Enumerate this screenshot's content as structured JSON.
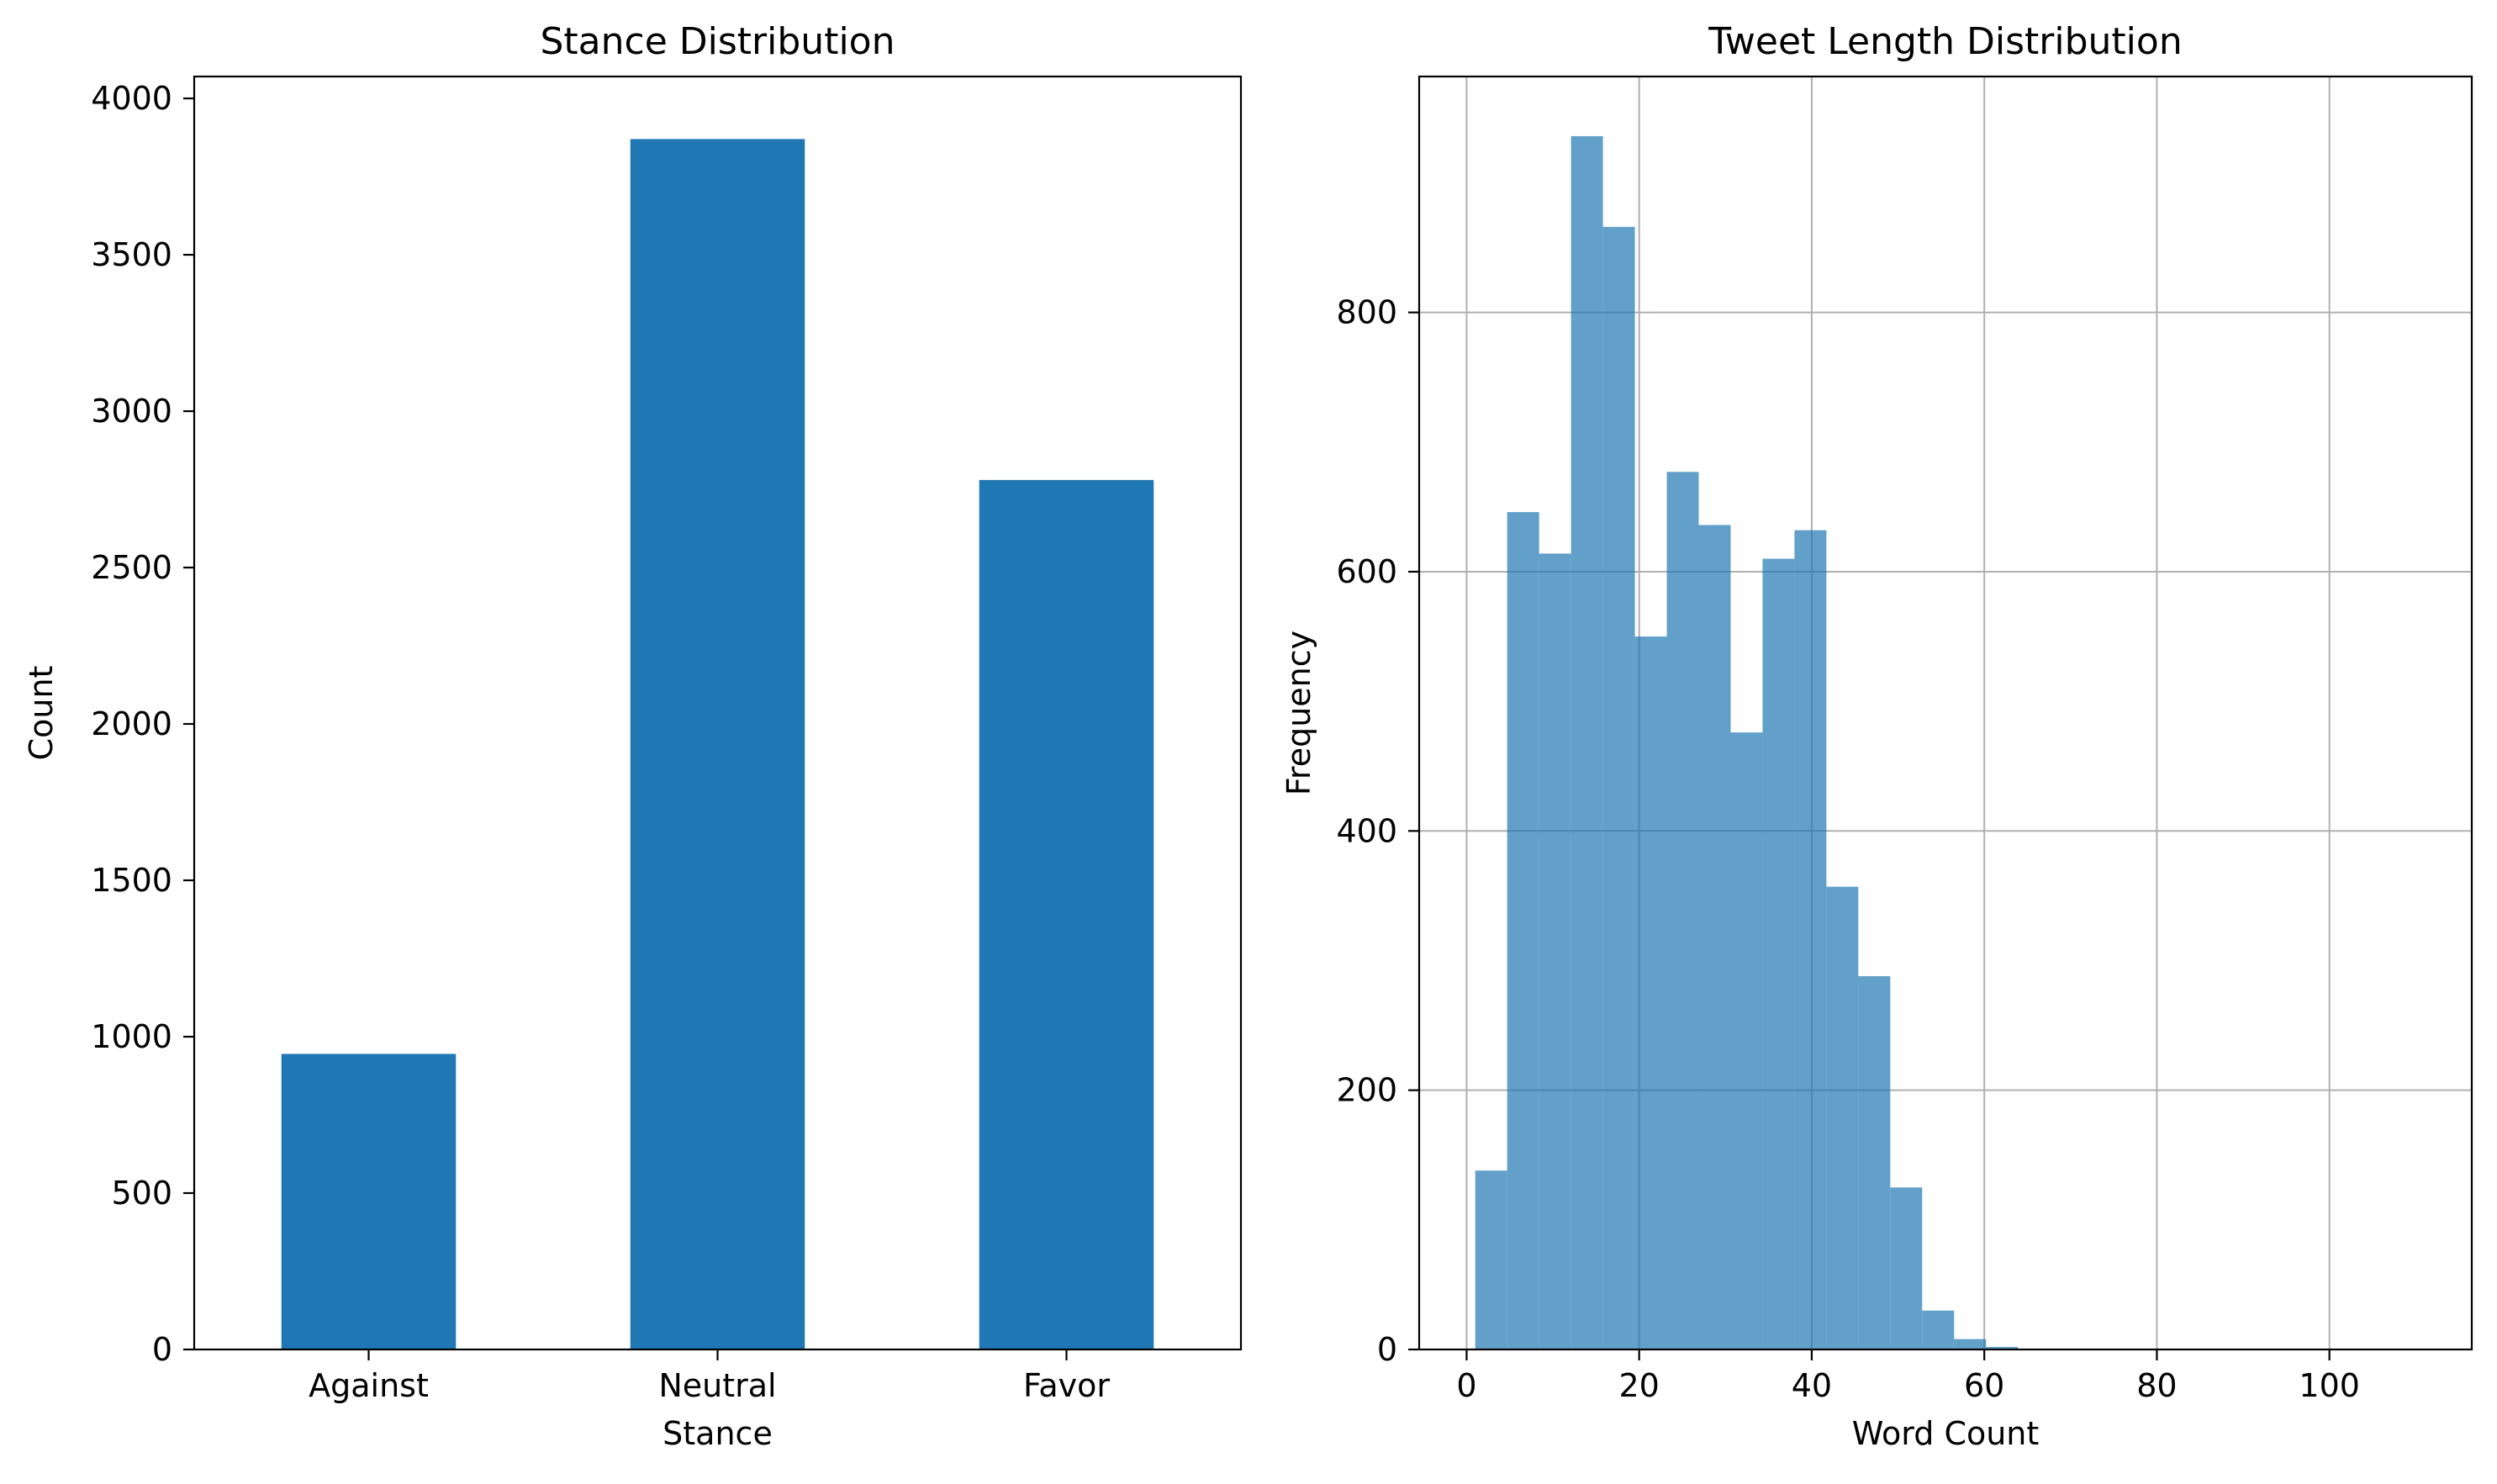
{
  "chart_data": [
    {
      "type": "bar",
      "title": "Stance Distribution",
      "xlabel": "Stance",
      "ylabel": "Count",
      "categories": [
        "Against",
        "Neutral",
        "Favor"
      ],
      "values": [
        945,
        3870,
        2780
      ],
      "ylim": [
        0,
        4070
      ],
      "yticks": [
        0,
        500,
        1000,
        1500,
        2000,
        2500,
        3000,
        3500,
        4000
      ],
      "grid": false,
      "color": "#1f77b4"
    },
    {
      "type": "bar",
      "title": "Tweet Length Distribution",
      "xlabel": "Word Count",
      "ylabel": "Frequency",
      "bin_edges": [
        1,
        4.7,
        8.4,
        12.1,
        15.8,
        19.5,
        23.2,
        26.9,
        30.6,
        34.3,
        38.0,
        41.7,
        45.4,
        49.1,
        52.8,
        56.5,
        60.2,
        63.9,
        67.6,
        71.3,
        75.0,
        78.7,
        82.4,
        86.1,
        89.8,
        93.5,
        97.2,
        100.9,
        104.6,
        108.3,
        112.0
      ],
      "values": [
        138,
        646,
        614,
        936,
        866,
        550,
        677,
        636,
        476,
        610,
        632,
        357,
        288,
        125,
        30,
        8,
        2,
        0,
        0,
        0,
        0,
        0,
        0,
        0,
        0,
        0,
        0,
        0,
        0,
        0
      ],
      "xlim": [
        -5.5,
        116.5
      ],
      "ylim": [
        0,
        982
      ],
      "xticks": [
        0,
        20,
        40,
        60,
        80,
        100
      ],
      "yticks": [
        0,
        200,
        400,
        600,
        800
      ],
      "grid": true,
      "color": "#1f77b4",
      "alpha": 0.7
    }
  ]
}
